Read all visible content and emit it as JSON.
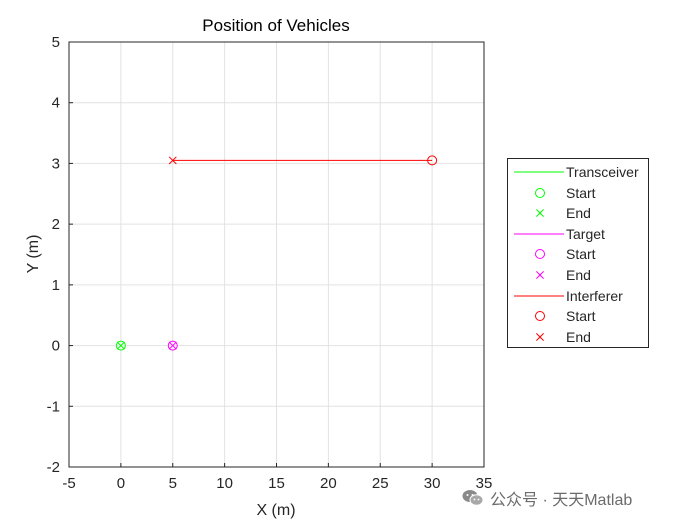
{
  "chart_data": {
    "type": "line",
    "title": "Position of Vehicles",
    "xlabel": "X (m)",
    "ylabel": "Y (m)",
    "xlim": [
      -5,
      35
    ],
    "ylim": [
      -2,
      5
    ],
    "xticks": [
      -5,
      0,
      5,
      10,
      15,
      20,
      25,
      30,
      35
    ],
    "yticks": [
      -2,
      -1,
      0,
      1,
      2,
      3,
      4,
      5
    ],
    "grid": true,
    "legend_position": "right",
    "series": [
      {
        "name": "Transceiver",
        "color": "#00ff00",
        "path": [
          [
            0,
            0
          ],
          [
            0,
            0
          ]
        ],
        "start": {
          "label": "Start",
          "x": 0,
          "y": 0
        },
        "end": {
          "label": "End",
          "x": 0,
          "y": 0
        }
      },
      {
        "name": "Target",
        "color": "#ff00ff",
        "path": [
          [
            5,
            0
          ],
          [
            5,
            0
          ]
        ],
        "start": {
          "label": "Start",
          "x": 5,
          "y": 0
        },
        "end": {
          "label": "End",
          "x": 5,
          "y": 0
        }
      },
      {
        "name": "Interferer",
        "color": "#ff0000",
        "path": [
          [
            30,
            3.05
          ],
          [
            5,
            3.05
          ]
        ],
        "start": {
          "label": "Start",
          "x": 30,
          "y": 3.05
        },
        "end": {
          "label": "End",
          "x": 5,
          "y": 3.05
        }
      }
    ]
  },
  "watermark": {
    "text": "公众号 · 天天Matlab",
    "icon": "wechat-icon"
  }
}
